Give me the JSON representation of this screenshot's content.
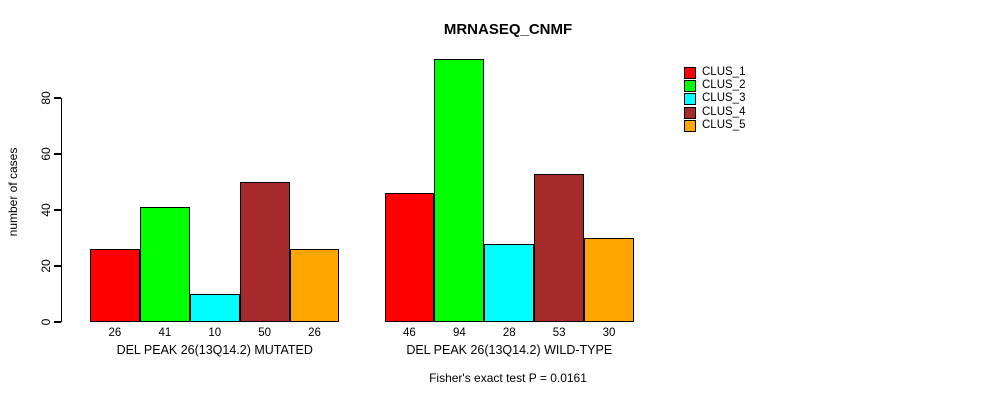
{
  "chart_data": {
    "type": "bar",
    "title": "MRNASEQ_CNMF",
    "ylabel": "number of cases",
    "xlabel": "",
    "yticks": [
      0,
      20,
      40,
      60,
      80
    ],
    "ylim": [
      0,
      100
    ],
    "grid": false,
    "legend_position": "right-outside",
    "value_labels_shown": true,
    "bar_border_color": "#000000",
    "categories": [
      "DEL PEAK 26(13Q14.2) MUTATED",
      "DEL PEAK 26(13Q14.2) WILD-TYPE"
    ],
    "series": [
      {
        "name": "CLUS_1",
        "color": "#FF0000",
        "values": [
          26,
          46
        ]
      },
      {
        "name": "CLUS_2",
        "color": "#00FF00",
        "values": [
          41,
          94
        ]
      },
      {
        "name": "CLUS_3",
        "color": "#00FFFF",
        "values": [
          10,
          28
        ]
      },
      {
        "name": "CLUS_4",
        "color": "#A52A2A",
        "values": [
          50,
          53
        ]
      },
      {
        "name": "CLUS_5",
        "color": "#FFA500",
        "values": [
          26,
          30
        ]
      }
    ],
    "annotation": "Fisher's exact test P = 0.0161"
  }
}
